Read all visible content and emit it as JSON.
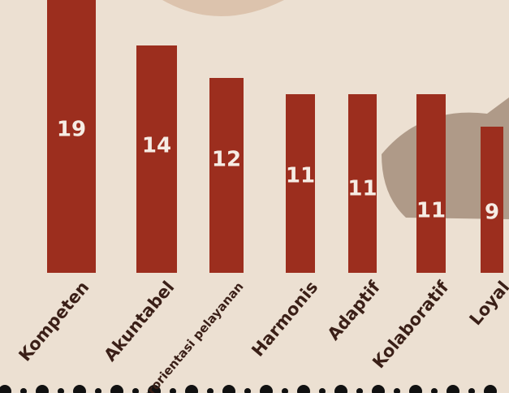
{
  "chart_data": {
    "type": "bar",
    "categories": [
      "Kompeten",
      "Akuntabel",
      "Barorientasi pelayanan",
      "Harmonis",
      "Adaptif",
      "Kolaboratif",
      "Loyal"
    ],
    "values": [
      19,
      14,
      12,
      11,
      11,
      11,
      9
    ],
    "color": "#9c2e1e"
  }
}
